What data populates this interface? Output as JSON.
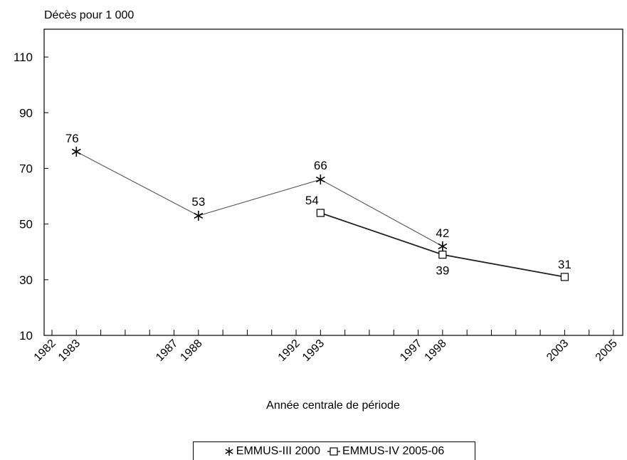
{
  "chart_data": {
    "type": "line",
    "ylabel": "Décès pour 1 000",
    "xlabel": "Année centrale de période",
    "xlim": [
      1982,
      2005
    ],
    "ylim": [
      10,
      120
    ],
    "yticks": [
      10,
      30,
      50,
      70,
      90,
      110
    ],
    "xticks": [
      {
        "value": 1982,
        "label": "1982"
      },
      {
        "value": 1983,
        "label": "1983"
      },
      {
        "value": 1987,
        "label": "1987"
      },
      {
        "value": 1988,
        "label": "1988"
      },
      {
        "value": 1992,
        "label": "1992"
      },
      {
        "value": 1993,
        "label": "1993"
      },
      {
        "value": 1997,
        "label": "1997"
      },
      {
        "value": 1998,
        "label": "1998"
      },
      {
        "value": 2003,
        "label": "2003"
      },
      {
        "value": 2005,
        "label": "2005"
      }
    ],
    "grid": false,
    "legend_position": "bottom",
    "series": [
      {
        "name": "EMMUS-III 2000",
        "marker": "star",
        "color": "#555555",
        "points": [
          {
            "x": 1983,
            "y": 76,
            "label": "76"
          },
          {
            "x": 1988,
            "y": 53,
            "label": "53"
          },
          {
            "x": 1993,
            "y": 66,
            "label": "66"
          },
          {
            "x": 1998,
            "y": 42,
            "label": "42"
          }
        ]
      },
      {
        "name": "EMMUS-IV 2005-06",
        "marker": "square",
        "color": "#222222",
        "points": [
          {
            "x": 1993,
            "y": 54,
            "label": "54"
          },
          {
            "x": 1998,
            "y": 39,
            "label": "39"
          },
          {
            "x": 2003,
            "y": 31,
            "label": "31"
          }
        ]
      }
    ]
  }
}
